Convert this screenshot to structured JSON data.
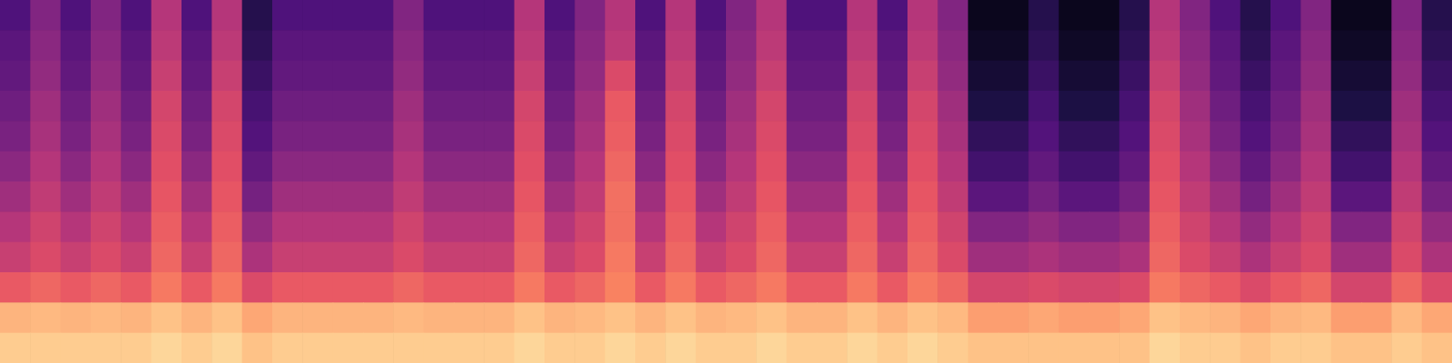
{
  "chart_data": {
    "type": "heatmap",
    "tick_labels": false,
    "clim": [
      0,
      1
    ],
    "cells": [
      [
        0.25,
        0.38,
        0.25,
        0.38,
        0.25,
        0.5,
        0.25,
        0.5,
        0.15,
        0.25,
        0.25,
        0.25,
        0.25,
        0.38,
        0.25,
        0.25,
        0.25,
        0.5,
        0.25,
        0.38,
        0.5,
        0.25,
        0.5,
        0.25,
        0.38,
        0.5,
        0.25,
        0.25,
        0.5,
        0.25,
        0.5,
        0.38,
        0.05,
        0.05,
        0.15,
        0.05,
        0.05,
        0.15,
        0.5,
        0.38,
        0.25,
        0.15,
        0.25,
        0.38,
        0.05,
        0.05,
        0.38,
        0.15
      ],
      [
        0.28,
        0.4,
        0.28,
        0.4,
        0.28,
        0.52,
        0.28,
        0.52,
        0.17,
        0.28,
        0.28,
        0.28,
        0.28,
        0.4,
        0.28,
        0.28,
        0.28,
        0.52,
        0.28,
        0.4,
        0.52,
        0.28,
        0.52,
        0.28,
        0.4,
        0.52,
        0.28,
        0.28,
        0.52,
        0.28,
        0.52,
        0.4,
        0.07,
        0.07,
        0.17,
        0.07,
        0.07,
        0.17,
        0.52,
        0.4,
        0.28,
        0.17,
        0.28,
        0.4,
        0.07,
        0.07,
        0.4,
        0.17
      ],
      [
        0.3,
        0.42,
        0.3,
        0.42,
        0.3,
        0.55,
        0.3,
        0.55,
        0.2,
        0.3,
        0.3,
        0.3,
        0.3,
        0.42,
        0.3,
        0.3,
        0.3,
        0.55,
        0.3,
        0.42,
        0.6,
        0.3,
        0.55,
        0.3,
        0.42,
        0.55,
        0.3,
        0.3,
        0.55,
        0.3,
        0.55,
        0.42,
        0.1,
        0.1,
        0.2,
        0.1,
        0.1,
        0.2,
        0.55,
        0.42,
        0.3,
        0.2,
        0.3,
        0.42,
        0.1,
        0.1,
        0.42,
        0.2
      ],
      [
        0.33,
        0.45,
        0.33,
        0.45,
        0.33,
        0.58,
        0.33,
        0.58,
        0.23,
        0.33,
        0.33,
        0.33,
        0.33,
        0.45,
        0.33,
        0.33,
        0.33,
        0.58,
        0.33,
        0.45,
        0.65,
        0.33,
        0.58,
        0.33,
        0.45,
        0.58,
        0.33,
        0.33,
        0.58,
        0.33,
        0.58,
        0.45,
        0.13,
        0.13,
        0.23,
        0.13,
        0.13,
        0.23,
        0.58,
        0.45,
        0.33,
        0.23,
        0.33,
        0.45,
        0.13,
        0.13,
        0.45,
        0.23
      ],
      [
        0.36,
        0.47,
        0.36,
        0.47,
        0.36,
        0.6,
        0.36,
        0.6,
        0.26,
        0.36,
        0.36,
        0.36,
        0.36,
        0.47,
        0.36,
        0.36,
        0.36,
        0.6,
        0.36,
        0.47,
        0.66,
        0.36,
        0.6,
        0.36,
        0.47,
        0.6,
        0.36,
        0.36,
        0.6,
        0.36,
        0.6,
        0.47,
        0.18,
        0.18,
        0.26,
        0.18,
        0.18,
        0.26,
        0.6,
        0.47,
        0.36,
        0.26,
        0.36,
        0.47,
        0.18,
        0.18,
        0.47,
        0.26
      ],
      [
        0.4,
        0.5,
        0.4,
        0.5,
        0.4,
        0.62,
        0.4,
        0.62,
        0.3,
        0.4,
        0.4,
        0.4,
        0.4,
        0.5,
        0.4,
        0.4,
        0.4,
        0.62,
        0.4,
        0.5,
        0.68,
        0.4,
        0.62,
        0.4,
        0.5,
        0.62,
        0.4,
        0.4,
        0.62,
        0.4,
        0.62,
        0.5,
        0.22,
        0.22,
        0.3,
        0.22,
        0.22,
        0.3,
        0.62,
        0.5,
        0.4,
        0.3,
        0.4,
        0.5,
        0.22,
        0.22,
        0.5,
        0.3
      ],
      [
        0.45,
        0.53,
        0.45,
        0.53,
        0.45,
        0.64,
        0.45,
        0.64,
        0.35,
        0.45,
        0.45,
        0.45,
        0.45,
        0.53,
        0.45,
        0.45,
        0.45,
        0.64,
        0.45,
        0.53,
        0.7,
        0.45,
        0.64,
        0.45,
        0.53,
        0.64,
        0.45,
        0.45,
        0.64,
        0.45,
        0.64,
        0.53,
        0.28,
        0.28,
        0.35,
        0.28,
        0.28,
        0.35,
        0.64,
        0.53,
        0.45,
        0.35,
        0.45,
        0.53,
        0.28,
        0.28,
        0.53,
        0.35
      ],
      [
        0.5,
        0.57,
        0.5,
        0.57,
        0.5,
        0.66,
        0.5,
        0.66,
        0.42,
        0.5,
        0.5,
        0.5,
        0.5,
        0.57,
        0.5,
        0.5,
        0.5,
        0.66,
        0.5,
        0.57,
        0.7,
        0.5,
        0.66,
        0.5,
        0.57,
        0.66,
        0.5,
        0.5,
        0.66,
        0.5,
        0.66,
        0.57,
        0.38,
        0.38,
        0.42,
        0.38,
        0.38,
        0.42,
        0.66,
        0.57,
        0.5,
        0.42,
        0.5,
        0.57,
        0.38,
        0.38,
        0.57,
        0.42
      ],
      [
        0.55,
        0.6,
        0.55,
        0.6,
        0.55,
        0.68,
        0.55,
        0.68,
        0.48,
        0.55,
        0.55,
        0.55,
        0.55,
        0.6,
        0.55,
        0.55,
        0.55,
        0.68,
        0.55,
        0.6,
        0.72,
        0.55,
        0.68,
        0.55,
        0.6,
        0.68,
        0.55,
        0.55,
        0.68,
        0.55,
        0.68,
        0.6,
        0.45,
        0.45,
        0.48,
        0.45,
        0.45,
        0.48,
        0.68,
        0.6,
        0.55,
        0.48,
        0.55,
        0.6,
        0.45,
        0.45,
        0.6,
        0.48
      ],
      [
        0.65,
        0.68,
        0.65,
        0.68,
        0.65,
        0.72,
        0.65,
        0.72,
        0.6,
        0.65,
        0.65,
        0.65,
        0.65,
        0.68,
        0.65,
        0.65,
        0.65,
        0.72,
        0.65,
        0.68,
        0.74,
        0.65,
        0.72,
        0.65,
        0.68,
        0.72,
        0.65,
        0.65,
        0.72,
        0.65,
        0.72,
        0.68,
        0.58,
        0.58,
        0.6,
        0.58,
        0.58,
        0.6,
        0.72,
        0.68,
        0.65,
        0.6,
        0.65,
        0.68,
        0.58,
        0.58,
        0.68,
        0.6
      ],
      [
        0.85,
        0.86,
        0.85,
        0.86,
        0.85,
        0.88,
        0.85,
        0.88,
        0.82,
        0.85,
        0.85,
        0.85,
        0.85,
        0.86,
        0.85,
        0.85,
        0.85,
        0.88,
        0.85,
        0.86,
        0.88,
        0.85,
        0.88,
        0.85,
        0.86,
        0.88,
        0.85,
        0.85,
        0.88,
        0.85,
        0.88,
        0.86,
        0.8,
        0.8,
        0.82,
        0.8,
        0.8,
        0.82,
        0.88,
        0.86,
        0.85,
        0.82,
        0.85,
        0.86,
        0.8,
        0.8,
        0.86,
        0.82
      ],
      [
        0.9,
        0.9,
        0.9,
        0.9,
        0.9,
        0.92,
        0.9,
        0.92,
        0.88,
        0.9,
        0.9,
        0.9,
        0.9,
        0.9,
        0.9,
        0.9,
        0.9,
        0.92,
        0.9,
        0.9,
        0.92,
        0.9,
        0.92,
        0.9,
        0.9,
        0.92,
        0.9,
        0.9,
        0.92,
        0.9,
        0.92,
        0.9,
        0.88,
        0.88,
        0.88,
        0.88,
        0.88,
        0.88,
        0.92,
        0.9,
        0.9,
        0.88,
        0.9,
        0.9,
        0.88,
        0.88,
        0.9,
        0.88
      ]
    ]
  }
}
